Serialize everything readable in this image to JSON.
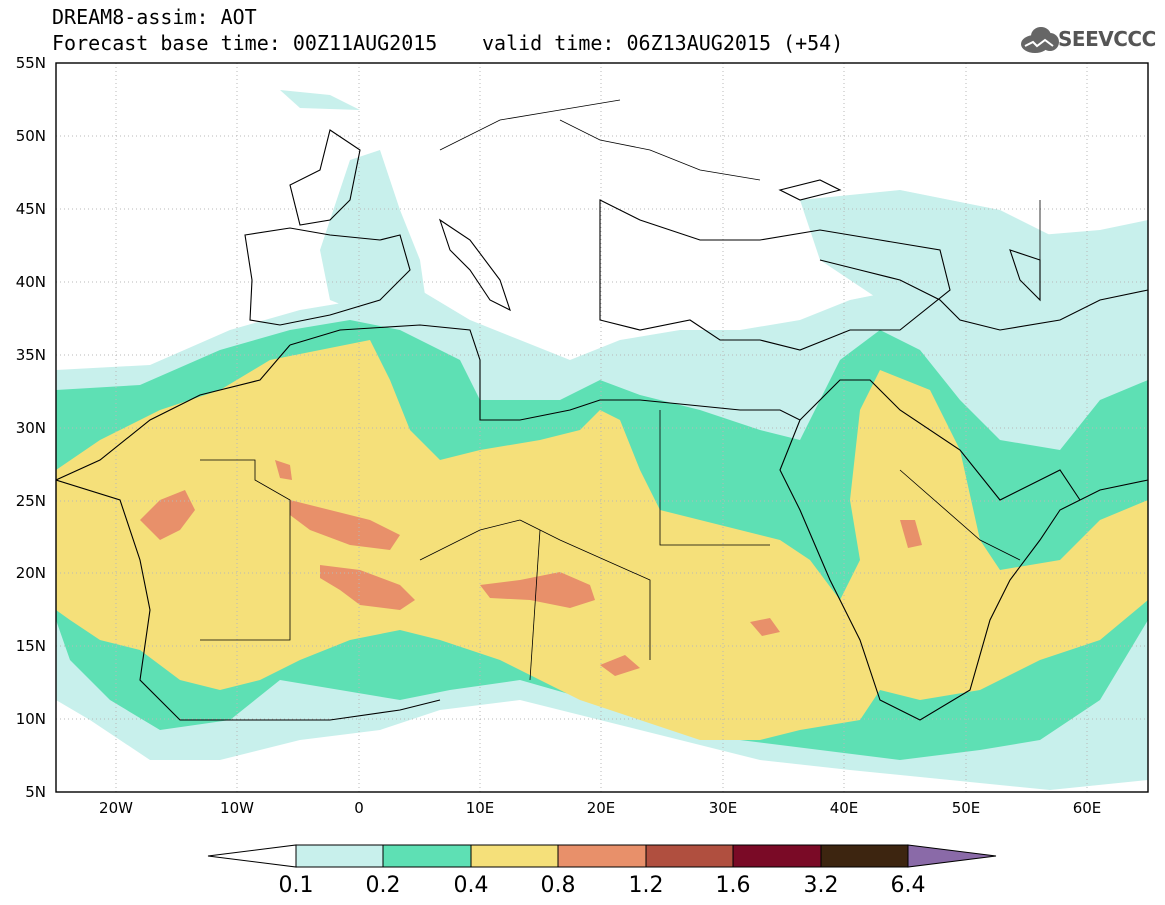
{
  "header": {
    "line1": "DREAM8-assim: AOT",
    "line2": "Forecast base time: 00Z11AUG2015",
    "line3": "valid time: 06Z13AUG2015 (+54)",
    "logo_text": "SEEVCCC"
  },
  "map": {
    "lat_range": [
      5,
      55
    ],
    "lon_range": [
      -25,
      65
    ],
    "lat_ticks": [
      "55N",
      "50N",
      "45N",
      "40N",
      "35N",
      "30N",
      "25N",
      "20N",
      "15N",
      "10N",
      "5N"
    ],
    "lon_ticks": [
      "20W",
      "10W",
      "0",
      "10E",
      "20E",
      "30E",
      "40E",
      "50E",
      "60E"
    ],
    "grid": "dotted"
  },
  "colorbar": {
    "labels": [
      "0.1",
      "0.2",
      "0.4",
      "0.8",
      "1.2",
      "1.6",
      "3.2",
      "6.4"
    ],
    "colors": [
      "#ffffff",
      "#c8f0ec",
      "#5ee0b4",
      "#f5e07a",
      "#e8906a",
      "#b04f3f",
      "#7a0a26",
      "#3d2510",
      "#8a6aa8"
    ]
  },
  "aot_colors": {
    "lt_0_1": "#ffffff",
    "c_0_1_0_2": "#c8f0ec",
    "c_0_2_0_4": "#5ee0b4",
    "c_0_4_0_8": "#f5e07a",
    "c_0_8_1_2": "#e8906a"
  }
}
